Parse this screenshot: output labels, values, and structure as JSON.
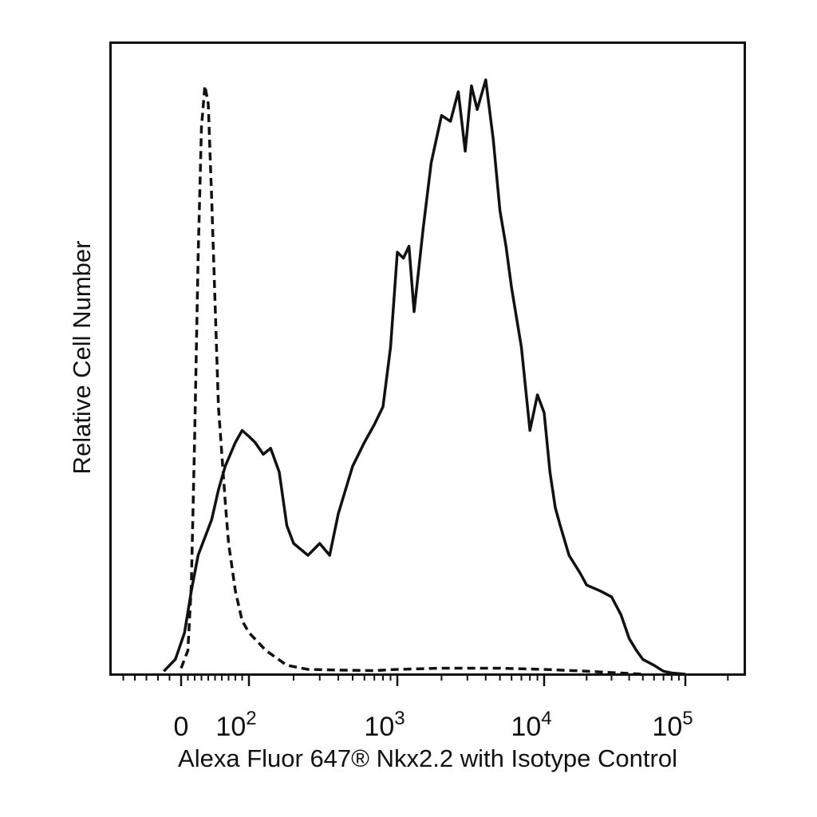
{
  "chart_data": {
    "type": "line",
    "title": "",
    "xlabel": "Alexa Fluor 647® Nkx2.2 with Isotype Control",
    "ylabel": "Relative Cell Number",
    "x_scale": "biexponential",
    "xlim": [
      -60,
      250000
    ],
    "ylim": [
      0,
      100
    ],
    "x_ticks": [
      {
        "value": 0,
        "base": "0",
        "exp": ""
      },
      {
        "value": 100,
        "base": "10",
        "exp": "2"
      },
      {
        "value": 1000,
        "base": "10",
        "exp": "3"
      },
      {
        "value": 10000,
        "base": "10",
        "exp": "4"
      },
      {
        "value": 100000,
        "base": "10",
        "exp": "5"
      }
    ],
    "grid": false,
    "legend": "none",
    "series": [
      {
        "style": "solid",
        "x": [
          -15,
          -5,
          5,
          15,
          25,
          35,
          45,
          55,
          65,
          80,
          90,
          100,
          110,
          125,
          140,
          160,
          180,
          200,
          250,
          300,
          350,
          400,
          500,
          600,
          700,
          800,
          900,
          1000,
          1100,
          1200,
          1300,
          1500,
          1700,
          2000,
          2300,
          2600,
          2900,
          3200,
          3500,
          4000,
          4500,
          5000,
          5500,
          6000,
          7000,
          8000,
          9000,
          10000,
          11000,
          12000,
          13000,
          15000,
          18000,
          20000,
          25000,
          30000,
          35000,
          40000,
          45000,
          50000,
          60000,
          70000,
          80000,
          100000
        ],
        "y": [
          0.5,
          2.5,
          7,
          14,
          20,
          23,
          26,
          31,
          35,
          39,
          41,
          40,
          39,
          37,
          38,
          34,
          25,
          22,
          20,
          22,
          20,
          27,
          35,
          39,
          42,
          45,
          55,
          71,
          70,
          72,
          61,
          75,
          86,
          94,
          93,
          98,
          88,
          99,
          95,
          100,
          90,
          78,
          72,
          65,
          55,
          41,
          47,
          44,
          34,
          28,
          25,
          20,
          17,
          15,
          14,
          13,
          10,
          6,
          4,
          2.5,
          1.5,
          0.5,
          0.2,
          0
        ]
      },
      {
        "style": "dashed",
        "x": [
          0,
          10,
          15,
          20,
          25,
          30,
          35,
          40,
          45,
          55,
          65,
          70,
          75,
          80,
          90,
          100,
          130,
          180,
          250,
          400,
          700,
          1000,
          2000,
          3000,
          5000,
          10000,
          20000,
          50000
        ],
        "y": [
          1,
          4,
          15,
          40,
          70,
          92,
          99,
          96,
          80,
          45,
          29,
          22,
          18,
          14,
          9,
          7,
          4,
          1.5,
          0.8,
          0.7,
          0.6,
          0.8,
          1,
          1,
          1,
          0.8,
          0.5,
          0
        ]
      }
    ]
  }
}
